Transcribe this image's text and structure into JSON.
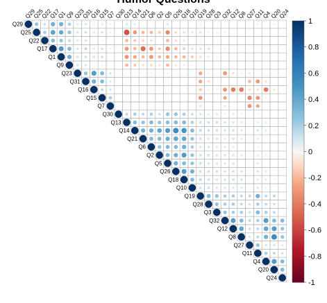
{
  "title": "Humor Questions",
  "chart_data": {
    "type": "heatmap",
    "title": "Humor Questions",
    "variables": [
      "Q29",
      "Q25",
      "Q22",
      "Q17",
      "Q1",
      "Q9",
      "Q23",
      "Q31",
      "Q16",
      "Q15",
      "Q7",
      "Q30",
      "Q13",
      "Q14",
      "Q21",
      "Q6",
      "Q2",
      "Q5",
      "Q26",
      "Q18",
      "Q10",
      "Q19",
      "Q28",
      "Q3",
      "Q32",
      "Q12",
      "Q8",
      "Q27",
      "Q11",
      "Q4",
      "Q20",
      "Q24"
    ],
    "colorbar": {
      "ticks": [
        1,
        0.8,
        0.6,
        0.4,
        0.2,
        0,
        -0.2,
        -0.4,
        -0.6,
        -0.8,
        -1
      ],
      "range": [
        -1,
        1
      ]
    },
    "palette": {
      "high": "#053061",
      "mid": "#f7f7f7",
      "low": "#67001f"
    },
    "cells": [
      [
        0,
        1,
        0.25
      ],
      [
        0,
        2,
        0.12
      ],
      [
        0,
        3,
        0.35
      ],
      [
        0,
        4,
        0.35
      ],
      [
        0,
        5,
        0.2
      ],
      [
        0,
        6,
        0.08
      ],
      [
        0,
        7,
        0.1
      ],
      [
        0,
        8,
        0.05
      ],
      [
        0,
        9,
        0.08
      ],
      [
        0,
        10,
        0.05
      ],
      [
        0,
        12,
        0.1
      ],
      [
        0,
        13,
        0.08
      ],
      [
        0,
        17,
        0.1
      ],
      [
        0,
        21,
        0.05
      ],
      [
        0,
        24,
        0.05
      ],
      [
        0,
        28,
        0.05
      ],
      [
        0,
        30,
        0.05
      ],
      [
        1,
        2,
        0.2
      ],
      [
        1,
        3,
        0.42
      ],
      [
        1,
        4,
        0.38
      ],
      [
        1,
        5,
        0.25
      ],
      [
        1,
        6,
        0.1
      ],
      [
        1,
        7,
        0.12
      ],
      [
        1,
        8,
        0.08
      ],
      [
        1,
        9,
        0.1
      ],
      [
        1,
        10,
        0.05
      ],
      [
        1,
        12,
        -0.55
      ],
      [
        1,
        13,
        -0.3
      ],
      [
        1,
        14,
        -0.2
      ],
      [
        1,
        15,
        -0.2
      ],
      [
        1,
        16,
        -0.15
      ],
      [
        1,
        17,
        -0.35
      ],
      [
        1,
        18,
        -0.12
      ],
      [
        1,
        19,
        -0.1
      ],
      [
        1,
        20,
        -0.08
      ],
      [
        1,
        21,
        -0.1
      ],
      [
        1,
        22,
        -0.05
      ],
      [
        1,
        23,
        -0.05
      ],
      [
        1,
        24,
        -0.05
      ],
      [
        2,
        3,
        0.3
      ],
      [
        2,
        4,
        0.25
      ],
      [
        2,
        5,
        0.15
      ],
      [
        2,
        6,
        0.08
      ],
      [
        2,
        7,
        0.1
      ],
      [
        2,
        9,
        0.05
      ],
      [
        2,
        12,
        -0.2
      ],
      [
        2,
        13,
        -0.15
      ],
      [
        2,
        14,
        -0.12
      ],
      [
        2,
        15,
        -0.1
      ],
      [
        2,
        17,
        -0.2
      ],
      [
        2,
        18,
        -0.1
      ],
      [
        2,
        19,
        -0.08
      ],
      [
        2,
        21,
        -0.05
      ],
      [
        3,
        4,
        0.45
      ],
      [
        3,
        5,
        0.3
      ],
      [
        3,
        6,
        0.1
      ],
      [
        3,
        7,
        0.15
      ],
      [
        3,
        8,
        0.08
      ],
      [
        3,
        9,
        0.12
      ],
      [
        3,
        10,
        0.05
      ],
      [
        3,
        12,
        -0.3
      ],
      [
        3,
        13,
        -0.2
      ],
      [
        3,
        14,
        -0.45
      ],
      [
        3,
        15,
        -0.3
      ],
      [
        3,
        16,
        -0.15
      ],
      [
        3,
        17,
        -0.35
      ],
      [
        3,
        18,
        -0.2
      ],
      [
        3,
        19,
        -0.15
      ],
      [
        3,
        20,
        -0.1
      ],
      [
        3,
        21,
        -0.1
      ],
      [
        3,
        22,
        -0.1
      ],
      [
        3,
        24,
        -0.05
      ],
      [
        4,
        5,
        0.35
      ],
      [
        4,
        6,
        0.1
      ],
      [
        4,
        7,
        0.12
      ],
      [
        4,
        8,
        0.1
      ],
      [
        4,
        9,
        0.12
      ],
      [
        4,
        12,
        -0.3
      ],
      [
        4,
        13,
        -0.25
      ],
      [
        4,
        14,
        -0.2
      ],
      [
        4,
        15,
        -0.3
      ],
      [
        4,
        16,
        -0.2
      ],
      [
        4,
        17,
        -0.25
      ],
      [
        4,
        18,
        -0.2
      ],
      [
        4,
        19,
        -0.2
      ],
      [
        4,
        20,
        -0.15
      ],
      [
        4,
        21,
        -0.1
      ],
      [
        4,
        22,
        -0.08
      ],
      [
        4,
        23,
        -0.05
      ],
      [
        5,
        6,
        0.1
      ],
      [
        5,
        7,
        0.1
      ],
      [
        5,
        9,
        0.05
      ],
      [
        5,
        12,
        -0.2
      ],
      [
        5,
        13,
        -0.15
      ],
      [
        5,
        14,
        -0.1
      ],
      [
        5,
        15,
        -0.12
      ],
      [
        5,
        16,
        -0.08
      ],
      [
        5,
        17,
        -0.2
      ],
      [
        5,
        18,
        -0.08
      ],
      [
        5,
        19,
        -0.05
      ],
      [
        5,
        20,
        -0.05
      ],
      [
        6,
        7,
        0.25
      ],
      [
        6,
        8,
        0.45
      ],
      [
        6,
        9,
        0.3
      ],
      [
        6,
        10,
        0.1
      ],
      [
        6,
        15,
        -0.05
      ],
      [
        6,
        17,
        -0.05
      ],
      [
        6,
        21,
        -0.25
      ],
      [
        6,
        22,
        -0.05
      ],
      [
        6,
        24,
        -0.3
      ],
      [
        6,
        25,
        -0.1
      ],
      [
        6,
        26,
        -0.05
      ],
      [
        6,
        27,
        -0.08
      ],
      [
        7,
        8,
        0.35
      ],
      [
        7,
        9,
        0.3
      ],
      [
        7,
        10,
        0.08
      ],
      [
        7,
        21,
        -0.25
      ],
      [
        7,
        22,
        -0.1
      ],
      [
        7,
        27,
        -0.2
      ],
      [
        7,
        28,
        -0.3
      ],
      [
        7,
        29,
        -0.1
      ],
      [
        8,
        9,
        0.15
      ],
      [
        8,
        10,
        0.1
      ],
      [
        8,
        21,
        -0.15
      ],
      [
        8,
        22,
        -0.05
      ],
      [
        8,
        23,
        -0.05
      ],
      [
        8,
        24,
        -0.3
      ],
      [
        8,
        25,
        -0.4
      ],
      [
        8,
        26,
        -0.4
      ],
      [
        8,
        27,
        -0.1
      ],
      [
        8,
        28,
        -0.1
      ],
      [
        8,
        29,
        -0.4
      ],
      [
        8,
        30,
        -0.08
      ],
      [
        9,
        10,
        0.2
      ],
      [
        9,
        21,
        -0.3
      ],
      [
        9,
        22,
        -0.05
      ],
      [
        9,
        24,
        -0.25
      ],
      [
        9,
        27,
        -0.35
      ],
      [
        9,
        28,
        -0.3
      ],
      [
        9,
        29,
        -0.05
      ],
      [
        10,
        21,
        -0.1
      ],
      [
        10,
        24,
        -0.08
      ],
      [
        10,
        27,
        -0.3
      ],
      [
        10,
        28,
        -0.25
      ],
      [
        11,
        12,
        0.15
      ],
      [
        11,
        13,
        0.2
      ],
      [
        11,
        14,
        0.15
      ],
      [
        11,
        15,
        0.2
      ],
      [
        11,
        16,
        0.12
      ],
      [
        11,
        17,
        0.25
      ],
      [
        11,
        18,
        0.25
      ],
      [
        11,
        19,
        0.2
      ],
      [
        11,
        20,
        0.12
      ],
      [
        11,
        21,
        0.1
      ],
      [
        11,
        22,
        0.08
      ],
      [
        11,
        23,
        0.08
      ],
      [
        11,
        24,
        0.05
      ],
      [
        11,
        25,
        0.08
      ],
      [
        11,
        26,
        0.05
      ],
      [
        11,
        28,
        0.05
      ],
      [
        12,
        13,
        0.3
      ],
      [
        12,
        14,
        0.25
      ],
      [
        12,
        15,
        0.3
      ],
      [
        12,
        16,
        0.25
      ],
      [
        12,
        17,
        0.28
      ],
      [
        12,
        18,
        0.3
      ],
      [
        12,
        19,
        0.3
      ],
      [
        12,
        20,
        0.2
      ],
      [
        12,
        21,
        0.12
      ],
      [
        12,
        22,
        0.12
      ],
      [
        12,
        23,
        0.12
      ],
      [
        12,
        24,
        0.1
      ],
      [
        12,
        25,
        0.1
      ],
      [
        12,
        26,
        0.08
      ],
      [
        12,
        28,
        0.08
      ],
      [
        12,
        29,
        0.08
      ],
      [
        13,
        14,
        0.35
      ],
      [
        13,
        15,
        0.35
      ],
      [
        13,
        16,
        0.4
      ],
      [
        13,
        17,
        0.45
      ],
      [
        13,
        18,
        0.55
      ],
      [
        13,
        19,
        0.5
      ],
      [
        13,
        20,
        0.3
      ],
      [
        13,
        21,
        0.15
      ],
      [
        13,
        22,
        0.12
      ],
      [
        13,
        23,
        0.12
      ],
      [
        13,
        24,
        0.1
      ],
      [
        13,
        25,
        0.12
      ],
      [
        13,
        26,
        0.08
      ],
      [
        13,
        28,
        0.1
      ],
      [
        13,
        29,
        0.08
      ],
      [
        13,
        30,
        0.05
      ],
      [
        14,
        15,
        0.3
      ],
      [
        14,
        16,
        0.3
      ],
      [
        14,
        17,
        0.35
      ],
      [
        14,
        18,
        0.4
      ],
      [
        14,
        19,
        0.4
      ],
      [
        14,
        20,
        0.25
      ],
      [
        14,
        21,
        0.12
      ],
      [
        14,
        22,
        0.1
      ],
      [
        14,
        23,
        0.1
      ],
      [
        14,
        24,
        0.08
      ],
      [
        14,
        25,
        0.1
      ],
      [
        14,
        26,
        0.08
      ],
      [
        14,
        28,
        0.08
      ],
      [
        15,
        16,
        0.25
      ],
      [
        15,
        17,
        0.3
      ],
      [
        15,
        18,
        0.3
      ],
      [
        15,
        19,
        0.35
      ],
      [
        15,
        20,
        0.2
      ],
      [
        15,
        21,
        0.1
      ],
      [
        15,
        22,
        0.1
      ],
      [
        15,
        23,
        0.08
      ],
      [
        15,
        24,
        0.08
      ],
      [
        15,
        25,
        0.08
      ],
      [
        15,
        28,
        0.05
      ],
      [
        16,
        17,
        0.3
      ],
      [
        16,
        18,
        0.35
      ],
      [
        16,
        19,
        0.45
      ],
      [
        16,
        20,
        0.25
      ],
      [
        16,
        21,
        0.12
      ],
      [
        16,
        22,
        0.12
      ],
      [
        16,
        23,
        0.1
      ],
      [
        16,
        24,
        0.1
      ],
      [
        16,
        25,
        0.1
      ],
      [
        16,
        26,
        0.08
      ],
      [
        16,
        28,
        0.08
      ],
      [
        16,
        29,
        0.05
      ],
      [
        17,
        18,
        0.35
      ],
      [
        17,
        19,
        0.3
      ],
      [
        17,
        20,
        0.25
      ],
      [
        17,
        21,
        0.12
      ],
      [
        17,
        22,
        0.1
      ],
      [
        17,
        23,
        0.1
      ],
      [
        17,
        24,
        0.08
      ],
      [
        17,
        25,
        0.1
      ],
      [
        17,
        28,
        0.08
      ],
      [
        18,
        19,
        0.45
      ],
      [
        18,
        20,
        0.35
      ],
      [
        18,
        21,
        0.12
      ],
      [
        18,
        22,
        0.12
      ],
      [
        18,
        23,
        0.12
      ],
      [
        18,
        24,
        0.1
      ],
      [
        18,
        25,
        0.12
      ],
      [
        18,
        26,
        0.1
      ],
      [
        18,
        28,
        0.1
      ],
      [
        18,
        29,
        0.08
      ],
      [
        19,
        20,
        0.3
      ],
      [
        19,
        21,
        0.15
      ],
      [
        19,
        22,
        0.12
      ],
      [
        19,
        23,
        0.1
      ],
      [
        19,
        24,
        0.1
      ],
      [
        19,
        25,
        0.12
      ],
      [
        19,
        26,
        0.1
      ],
      [
        19,
        28,
        0.08
      ],
      [
        19,
        29,
        0.08
      ],
      [
        19,
        30,
        0.05
      ],
      [
        20,
        21,
        0.12
      ],
      [
        20,
        22,
        0.12
      ],
      [
        20,
        23,
        0.1
      ],
      [
        20,
        24,
        0.1
      ],
      [
        20,
        25,
        0.1
      ],
      [
        20,
        26,
        0.08
      ],
      [
        20,
        28,
        0.08
      ],
      [
        20,
        29,
        0.05
      ],
      [
        21,
        22,
        0.3
      ],
      [
        21,
        23,
        0.25
      ],
      [
        21,
        24,
        0.2
      ],
      [
        21,
        25,
        0.2
      ],
      [
        21,
        26,
        0.15
      ],
      [
        21,
        27,
        0.15
      ],
      [
        21,
        28,
        0.35
      ],
      [
        21,
        29,
        0.15
      ],
      [
        21,
        30,
        0.15
      ],
      [
        22,
        23,
        0.25
      ],
      [
        22,
        24,
        0.2
      ],
      [
        22,
        25,
        0.2
      ],
      [
        22,
        26,
        0.15
      ],
      [
        22,
        27,
        0.1
      ],
      [
        22,
        28,
        0.2
      ],
      [
        22,
        29,
        0.15
      ],
      [
        22,
        30,
        0.12
      ],
      [
        23,
        24,
        0.25
      ],
      [
        23,
        25,
        0.2
      ],
      [
        23,
        26,
        0.2
      ],
      [
        23,
        27,
        0.12
      ],
      [
        23,
        28,
        0.3
      ],
      [
        23,
        29,
        0.2
      ],
      [
        23,
        30,
        0.15
      ],
      [
        24,
        25,
        0.45
      ],
      [
        24,
        26,
        0.3
      ],
      [
        24,
        27,
        0.15
      ],
      [
        24,
        28,
        0.2
      ],
      [
        24,
        29,
        0.45
      ],
      [
        24,
        30,
        0.3
      ],
      [
        24,
        31,
        0.3
      ],
      [
        25,
        26,
        0.4
      ],
      [
        25,
        27,
        0.12
      ],
      [
        25,
        28,
        0.15
      ],
      [
        25,
        29,
        0.4
      ],
      [
        25,
        30,
        0.45
      ],
      [
        25,
        31,
        0.25
      ],
      [
        26,
        27,
        0.1
      ],
      [
        26,
        28,
        0.15
      ],
      [
        26,
        29,
        0.35
      ],
      [
        26,
        30,
        0.55
      ],
      [
        26,
        31,
        0.25
      ],
      [
        27,
        28,
        0.25
      ],
      [
        27,
        29,
        0.1
      ],
      [
        27,
        30,
        0.1
      ],
      [
        27,
        31,
        0.08
      ],
      [
        28,
        29,
        0.2
      ],
      [
        28,
        30,
        0.15
      ],
      [
        28,
        31,
        0.12
      ],
      [
        29,
        30,
        0.45
      ],
      [
        29,
        31,
        0.3
      ],
      [
        30,
        31,
        0.3
      ]
    ]
  }
}
